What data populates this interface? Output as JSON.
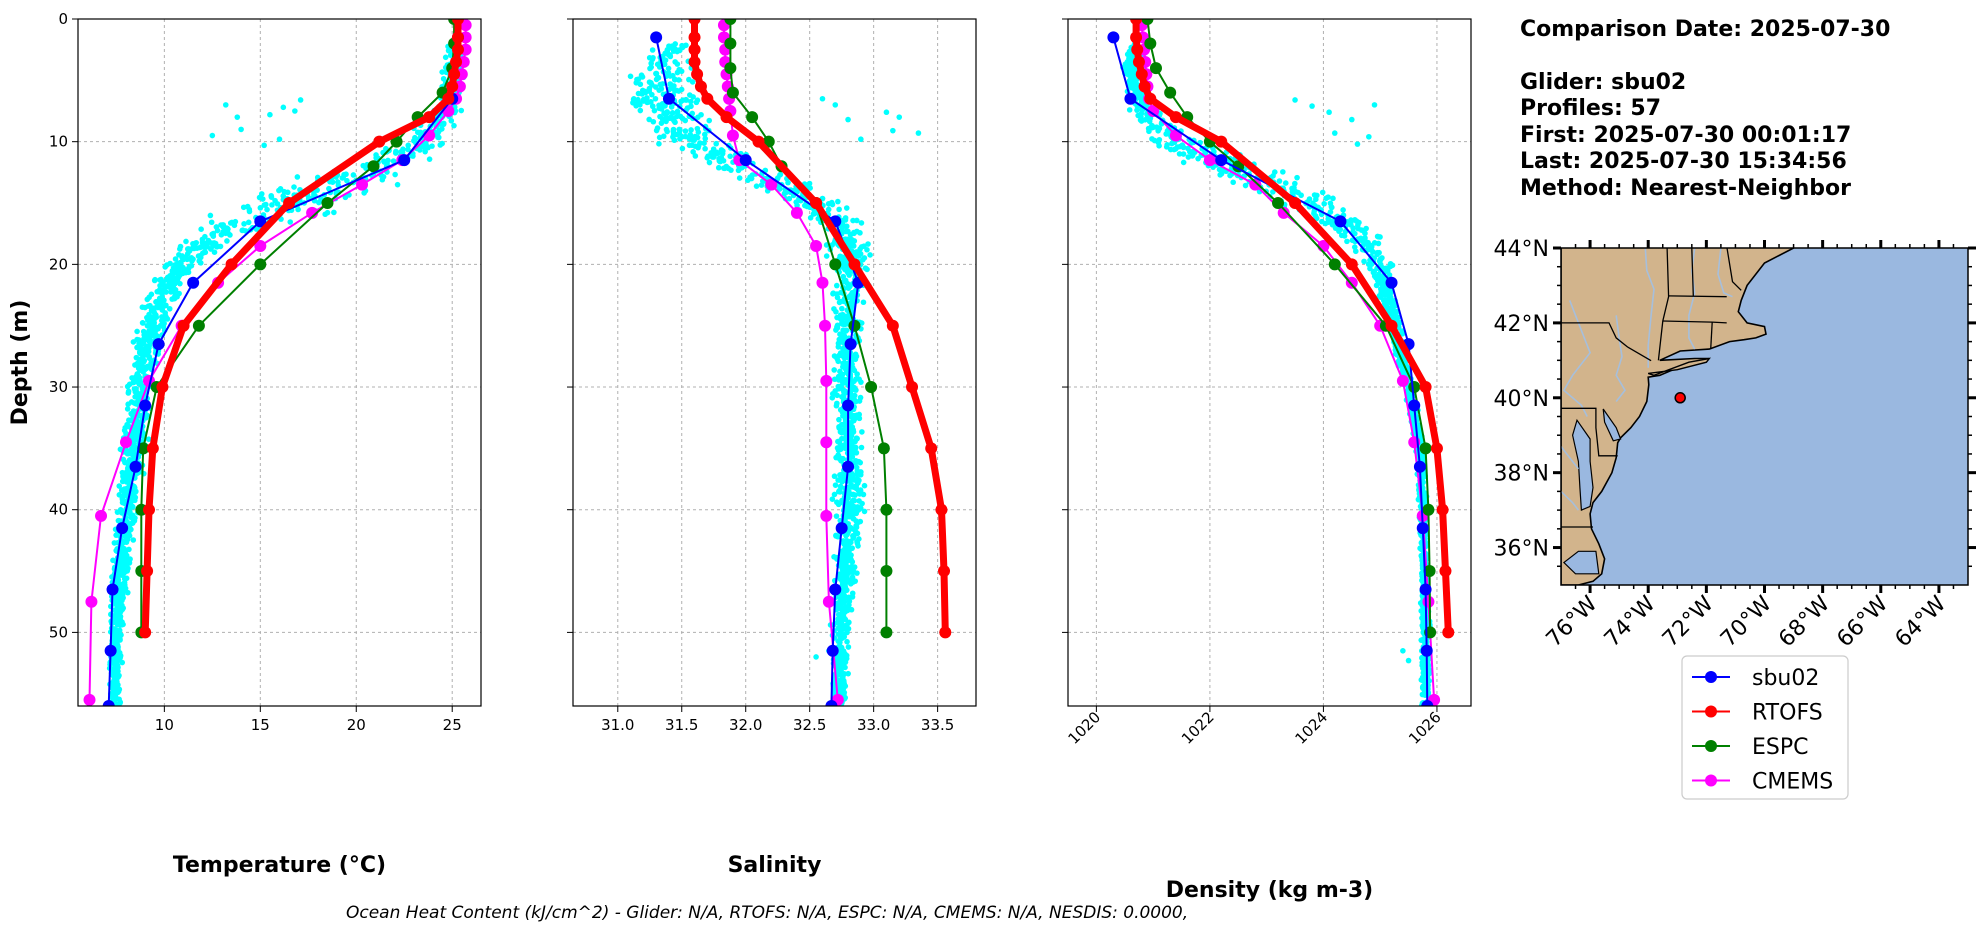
{
  "figure": {
    "footer": "Ocean Heat Content (kJ/cm^2) - Glider: N/A,  RTOFS: N/A,  ESPC: N/A,  CMEMS: N/A,  NESDIS: 0.0000,"
  },
  "info": {
    "lines": [
      "Comparison Date: 2025-07-30",
      "",
      "Glider: sbu02",
      "Profiles: 57",
      "First: 2025-07-30 00:01:17",
      "Last: 2025-07-30 15:34:56",
      "Method: Nearest-Neighbor"
    ]
  },
  "map": {
    "lat_labels": [
      "44°N",
      "42°N",
      "40°N",
      "38°N",
      "36°N"
    ],
    "lon_labels": [
      "76°W",
      "74°W",
      "72°W",
      "70°W",
      "68°W",
      "66°W",
      "64°W"
    ],
    "lat_values": [
      44,
      42,
      40,
      38,
      36
    ],
    "lon_values": [
      -76,
      -74,
      -72,
      -70,
      -68,
      -66,
      -64
    ],
    "extent": {
      "lon": [
        -77,
        -63
      ],
      "lat": [
        35,
        44
      ]
    },
    "glider_position": {
      "lon": -72.9,
      "lat": 40.0
    },
    "land_color": "#d2b48c",
    "ocean_color": "#9ab8e0"
  },
  "legend": {
    "entries": [
      {
        "label": "sbu02",
        "color": "#0000ff"
      },
      {
        "label": "RTOFS",
        "color": "#ff0000"
      },
      {
        "label": "ESPC",
        "color": "#008000"
      },
      {
        "label": "CMEMS",
        "color": "#ff00ff"
      }
    ]
  },
  "chart_data": [
    {
      "type": "line",
      "title": "",
      "xlabel": "Temperature (°C)",
      "ylabel": "Depth (m)",
      "xlim": [
        5.5,
        26.5
      ],
      "ylim": [
        56,
        0
      ],
      "xticks": [
        10,
        15,
        20,
        25
      ],
      "yticks": [
        0,
        10,
        20,
        30,
        40,
        50
      ],
      "grid": true,
      "scatter_band": {
        "name": "glider observations",
        "color": "#00ffff",
        "depth": [
          2,
          5,
          8,
          10,
          12,
          14,
          16,
          18,
          20,
          22,
          25,
          30,
          35,
          40,
          45,
          50,
          55
        ],
        "lo": [
          24.5,
          24.3,
          23.5,
          21.5,
          18.0,
          13.5,
          11.8,
          10.5,
          9.8,
          9.0,
          8.3,
          7.8,
          7.5,
          7.3,
          7.1,
          7.0,
          7.0
        ],
        "hi": [
          25.8,
          25.8,
          25.8,
          25.3,
          24.2,
          22.0,
          18.8,
          14.5,
          12.0,
          11.0,
          10.4,
          9.7,
          9.3,
          8.8,
          8.3,
          8.0,
          7.8
        ],
        "outliers": [
          [
            13.2,
            7.0
          ],
          [
            13.8,
            8.0
          ],
          [
            16.2,
            7.2
          ],
          [
            16.8,
            7.5
          ],
          [
            17.1,
            6.6
          ],
          [
            12.5,
            9.5
          ],
          [
            14.0,
            9.0
          ],
          [
            15.2,
            10.3
          ],
          [
            16.0,
            9.8
          ],
          [
            15.5,
            7.8
          ]
        ]
      },
      "series": [
        {
          "name": "sbu02",
          "color": "#0000ff",
          "width": 2,
          "marker": 6,
          "y": [
            1.5,
            6.5,
            11.5,
            16.5,
            21.5,
            26.5,
            31.5,
            36.5,
            41.5,
            46.5,
            51.5,
            56.0
          ],
          "x": [
            25.3,
            25.0,
            22.5,
            15.0,
            11.5,
            9.7,
            9.0,
            8.5,
            7.8,
            7.3,
            7.2,
            7.1
          ]
        },
        {
          "name": "RTOFS",
          "color": "#ff0000",
          "width": 7,
          "marker": 6,
          "y": [
            0,
            1.5,
            2.5,
            3.5,
            4.5,
            5.5,
            6.5,
            8,
            10,
            15,
            20,
            25,
            30,
            35,
            40,
            45,
            50
          ],
          "x": [
            25.3,
            25.3,
            25.3,
            25.2,
            25.1,
            25.0,
            24.8,
            23.8,
            21.2,
            16.5,
            13.5,
            11.0,
            9.9,
            9.4,
            9.2,
            9.1,
            9.0
          ]
        },
        {
          "name": "ESPC",
          "color": "#008000",
          "width": 2,
          "marker": 6,
          "y": [
            0,
            2,
            4,
            6,
            8,
            10,
            12,
            15,
            20,
            25,
            30,
            35,
            40,
            45,
            50
          ],
          "x": [
            25.1,
            25.1,
            25.0,
            24.5,
            23.2,
            22.1,
            20.9,
            18.5,
            15.0,
            11.8,
            9.6,
            8.9,
            8.8,
            8.8,
            8.8
          ]
        },
        {
          "name": "CMEMS",
          "color": "#ff00ff",
          "width": 2,
          "marker": 6,
          "y": [
            0.5,
            1.5,
            2.5,
            3.5,
            4.5,
            5.5,
            6.5,
            7.5,
            9.5,
            11.5,
            13.5,
            15.8,
            18.5,
            21.5,
            25.0,
            29.5,
            34.5,
            40.5,
            47.5,
            55.5
          ],
          "x": [
            25.7,
            25.7,
            25.7,
            25.6,
            25.5,
            25.4,
            25.2,
            24.8,
            23.8,
            22.4,
            20.3,
            17.7,
            15.0,
            12.8,
            10.9,
            9.2,
            8.0,
            6.7,
            6.2,
            6.1
          ]
        }
      ]
    },
    {
      "type": "line",
      "title": "",
      "xlabel": "Salinity",
      "ylabel": "",
      "xlim": [
        30.65,
        33.8
      ],
      "ylim": [
        56,
        0
      ],
      "xticks": [
        31.0,
        31.5,
        32.0,
        32.5,
        33.0,
        33.5
      ],
      "yticks": [
        0,
        10,
        20,
        30,
        40,
        50
      ],
      "grid": true,
      "scatter_band": {
        "name": "glider observations",
        "color": "#00ffff",
        "depth": [
          2,
          4,
          6,
          8,
          10,
          12,
          14,
          16,
          18,
          20,
          22,
          25,
          30,
          35,
          40,
          45,
          50,
          55
        ],
        "lo": [
          31.3,
          31.0,
          30.95,
          31.05,
          31.2,
          31.6,
          32.1,
          32.4,
          32.55,
          32.6,
          32.65,
          32.65,
          32.65,
          32.65,
          32.65,
          32.65,
          32.65,
          32.65
        ],
        "hi": [
          31.6,
          31.65,
          31.7,
          31.8,
          31.95,
          32.3,
          32.7,
          32.95,
          33.05,
          33.05,
          33.0,
          32.95,
          32.95,
          32.95,
          32.95,
          32.9,
          32.85,
          32.8
        ],
        "outliers": [
          [
            32.6,
            6.5
          ],
          [
            32.7,
            7.0
          ],
          [
            32.8,
            8.2
          ],
          [
            33.1,
            7.6
          ],
          [
            33.2,
            8.0
          ],
          [
            33.15,
            9.1
          ],
          [
            33.35,
            9.3
          ],
          [
            32.9,
            9.8
          ],
          [
            32.65,
            51.5
          ],
          [
            32.55,
            52.0
          ]
        ]
      },
      "series": [
        {
          "name": "sbu02",
          "color": "#0000ff",
          "width": 2,
          "marker": 6,
          "y": [
            1.5,
            6.5,
            11.5,
            16.5,
            21.5,
            26.5,
            31.5,
            36.5,
            41.5,
            46.5,
            51.5,
            56.0
          ],
          "x": [
            31.3,
            31.4,
            32.0,
            32.7,
            32.88,
            32.82,
            32.8,
            32.8,
            32.75,
            32.7,
            32.68,
            32.67
          ]
        },
        {
          "name": "RTOFS",
          "color": "#ff0000",
          "width": 7,
          "marker": 6,
          "y": [
            0,
            1.5,
            2.5,
            3.5,
            4.5,
            5.5,
            6.5,
            8,
            10,
            15,
            20,
            25,
            30,
            35,
            40,
            45,
            50
          ],
          "x": [
            31.6,
            31.6,
            31.6,
            31.6,
            31.62,
            31.65,
            31.7,
            31.85,
            32.1,
            32.55,
            32.85,
            33.15,
            33.3,
            33.45,
            33.53,
            33.55,
            33.56
          ]
        },
        {
          "name": "ESPC",
          "color": "#008000",
          "width": 2,
          "marker": 6,
          "y": [
            0,
            2,
            4,
            6,
            8,
            10,
            12,
            15,
            20,
            25,
            30,
            35,
            40,
            45,
            50
          ],
          "x": [
            31.88,
            31.88,
            31.88,
            31.9,
            32.05,
            32.18,
            32.28,
            32.55,
            32.7,
            32.85,
            32.98,
            33.08,
            33.1,
            33.1,
            33.1
          ]
        },
        {
          "name": "CMEMS",
          "color": "#ff00ff",
          "width": 2,
          "marker": 6,
          "y": [
            0.5,
            1.5,
            2.5,
            3.5,
            4.5,
            5.5,
            6.5,
            7.5,
            9.5,
            11.5,
            13.5,
            15.8,
            18.5,
            21.5,
            25.0,
            29.5,
            34.5,
            40.5,
            47.5,
            55.5
          ],
          "x": [
            31.83,
            31.83,
            31.84,
            31.84,
            31.85,
            31.86,
            31.87,
            31.88,
            31.9,
            31.95,
            32.2,
            32.4,
            32.55,
            32.6,
            32.62,
            32.63,
            32.63,
            32.63,
            32.65,
            32.72
          ]
        }
      ]
    },
    {
      "type": "line",
      "title": "",
      "xlabel": "Density (kg m-3)",
      "ylabel": "",
      "xlim": [
        1019.5,
        1026.6
      ],
      "ylim": [
        56,
        0
      ],
      "xticks": [
        1020,
        1022,
        1024,
        1026
      ],
      "yticks": [
        0,
        10,
        20,
        30,
        40,
        50
      ],
      "grid": true,
      "scatter_band": {
        "name": "glider observations",
        "color": "#00ffff",
        "depth": [
          2,
          4,
          6,
          8,
          10,
          12,
          14,
          16,
          18,
          20,
          22,
          25,
          30,
          35,
          40,
          45,
          50,
          55
        ],
        "lo": [
          1020.5,
          1020.4,
          1020.4,
          1020.5,
          1020.8,
          1021.5,
          1022.5,
          1023.4,
          1024.2,
          1024.6,
          1024.9,
          1025.1,
          1025.4,
          1025.6,
          1025.65,
          1025.7,
          1025.7,
          1025.7
        ],
        "hi": [
          1020.9,
          1020.9,
          1021.0,
          1021.3,
          1022.0,
          1023.2,
          1024.2,
          1024.9,
          1025.2,
          1025.3,
          1025.3,
          1025.4,
          1025.6,
          1025.8,
          1025.85,
          1025.85,
          1025.9,
          1025.9
        ],
        "outliers": [
          [
            1023.5,
            6.6
          ],
          [
            1023.8,
            7.1
          ],
          [
            1024.1,
            7.6
          ],
          [
            1024.5,
            8.2
          ],
          [
            1024.2,
            9.3
          ],
          [
            1024.8,
            9.6
          ],
          [
            1024.6,
            10.2
          ],
          [
            1024.9,
            7.0
          ],
          [
            1025.4,
            51.5
          ],
          [
            1025.5,
            52.3
          ]
        ]
      },
      "series": [
        {
          "name": "sbu02",
          "color": "#0000ff",
          "width": 2,
          "marker": 6,
          "y": [
            1.5,
            6.5,
            11.5,
            16.5,
            21.5,
            26.5,
            31.5,
            36.5,
            41.5,
            46.5,
            51.5,
            56.0
          ],
          "x": [
            1020.3,
            1020.6,
            1022.2,
            1024.3,
            1025.2,
            1025.5,
            1025.6,
            1025.7,
            1025.75,
            1025.8,
            1025.82,
            1025.83
          ]
        },
        {
          "name": "RTOFS",
          "color": "#ff0000",
          "width": 7,
          "marker": 6,
          "y": [
            0,
            1.5,
            2.5,
            3.5,
            4.5,
            5.5,
            6.5,
            8,
            10,
            15,
            20,
            25,
            30,
            35,
            40,
            45,
            50
          ],
          "x": [
            1020.7,
            1020.7,
            1020.72,
            1020.75,
            1020.8,
            1020.85,
            1020.95,
            1021.4,
            1022.2,
            1023.5,
            1024.5,
            1025.2,
            1025.8,
            1026.0,
            1026.1,
            1026.15,
            1026.2
          ]
        },
        {
          "name": "ESPC",
          "color": "#008000",
          "width": 2,
          "marker": 6,
          "y": [
            0,
            2,
            4,
            6,
            8,
            10,
            12,
            15,
            20,
            25,
            30,
            35,
            40,
            45,
            50
          ],
          "x": [
            1020.9,
            1020.95,
            1021.05,
            1021.3,
            1021.6,
            1022.0,
            1022.5,
            1023.2,
            1024.2,
            1025.1,
            1025.6,
            1025.8,
            1025.85,
            1025.87,
            1025.88
          ]
        },
        {
          "name": "CMEMS",
          "color": "#ff00ff",
          "width": 2,
          "marker": 6,
          "y": [
            0.5,
            1.5,
            2.5,
            3.5,
            4.5,
            5.5,
            6.5,
            7.5,
            9.5,
            11.5,
            13.5,
            15.8,
            18.5,
            21.5,
            25.0,
            29.5,
            34.5,
            40.5,
            47.5,
            55.5
          ],
          "x": [
            1020.8,
            1020.82,
            1020.84,
            1020.86,
            1020.88,
            1020.9,
            1020.93,
            1021.0,
            1021.4,
            1022.0,
            1022.8,
            1023.3,
            1024.0,
            1024.5,
            1025.0,
            1025.4,
            1025.6,
            1025.75,
            1025.85,
            1025.95
          ]
        }
      ]
    }
  ]
}
